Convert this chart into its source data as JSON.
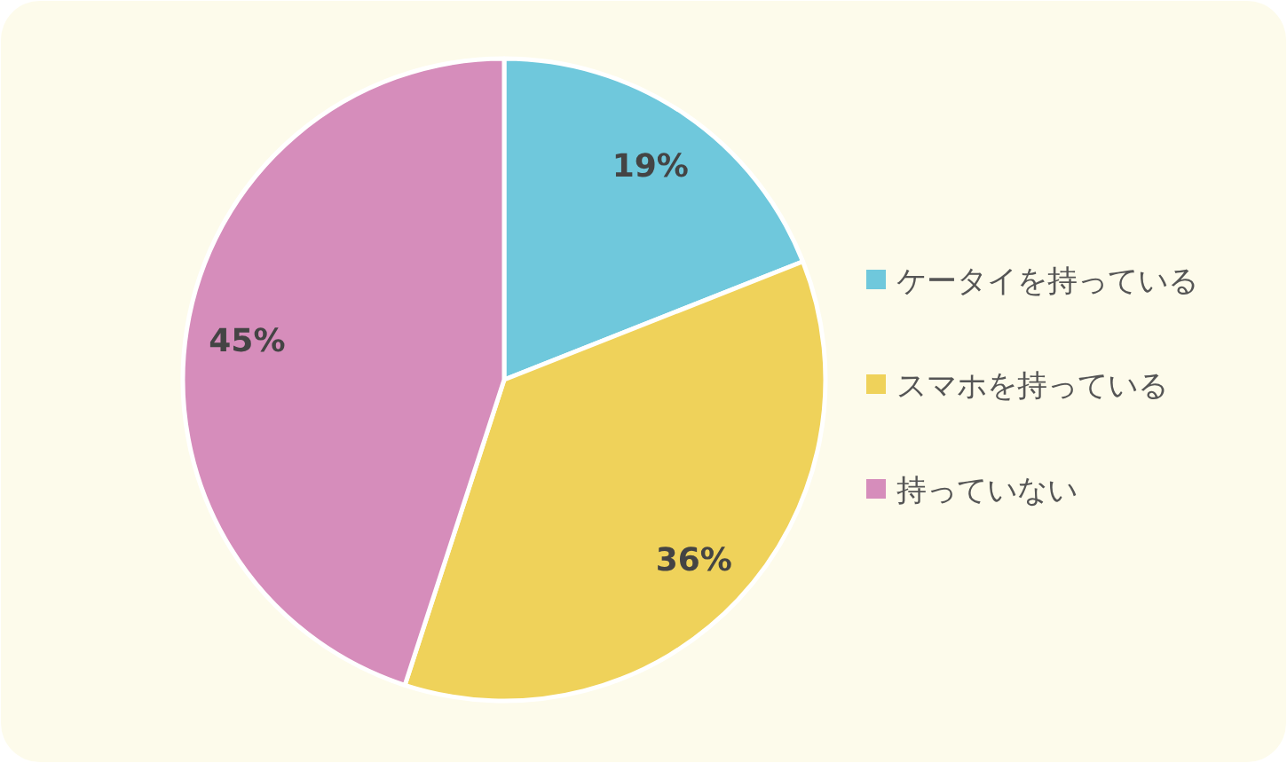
{
  "chart_data": {
    "type": "pie",
    "categories": [
      "ケータイを持っている",
      "スマホを持っている",
      "持っていない"
    ],
    "values": [
      19,
      36,
      45
    ],
    "colors": [
      "#6fc8dc",
      "#efd25a",
      "#d68dbb"
    ],
    "value_labels": [
      "19%",
      "36%",
      "45%"
    ],
    "legend": "right"
  }
}
